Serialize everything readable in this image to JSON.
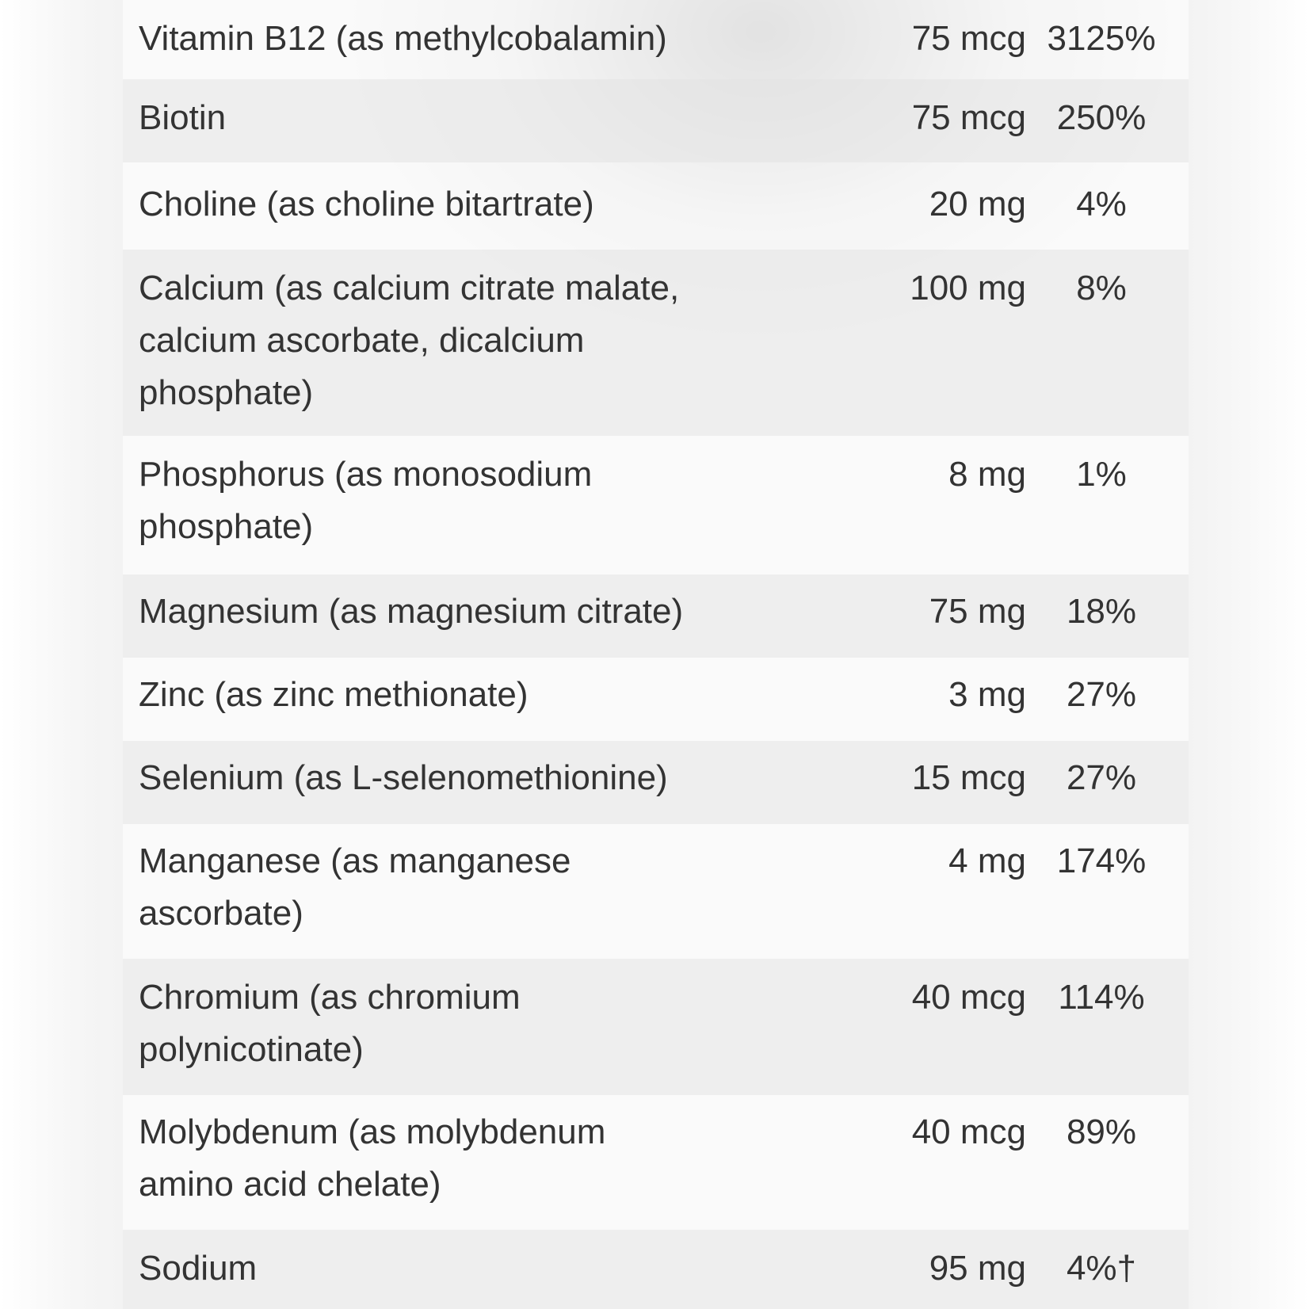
{
  "rows": [
    {
      "name": "Vitamin B12 (as methylcobalamin)",
      "amount": "75 mcg",
      "dv": "3125%"
    },
    {
      "name": "Biotin",
      "amount": "75 mcg",
      "dv": "250%"
    },
    {
      "name": "Choline (as choline bitartrate)",
      "amount": "20 mg",
      "dv": "4%"
    },
    {
      "name": "Calcium (as calcium citrate malate, calcium ascorbate, dicalcium phosphate)",
      "amount": "100 mg",
      "dv": "8%"
    },
    {
      "name": "Phosphorus (as monosodium phosphate)",
      "amount": "8 mg",
      "dv": "1%"
    },
    {
      "name": "Magnesium (as magnesium citrate)",
      "amount": "75 mg",
      "dv": "18%"
    },
    {
      "name": "Zinc (as zinc methionate)",
      "amount": "3 mg",
      "dv": "27%"
    },
    {
      "name": "Selenium (as L-selenomethionine)",
      "amount": "15 mcg",
      "dv": "27%"
    },
    {
      "name": "Manganese (as manganese ascorbate)",
      "amount": "4 mg",
      "dv": "174%"
    },
    {
      "name": "Chromium (as chromium polynicotinate)",
      "amount": "40 mcg",
      "dv": "114%"
    },
    {
      "name": "Molybdenum (as molybdenum amino acid chelate)",
      "amount": "40 mcg",
      "dv": "89%"
    },
    {
      "name": "Sodium",
      "amount": "95 mg",
      "dv": "4%†"
    }
  ]
}
